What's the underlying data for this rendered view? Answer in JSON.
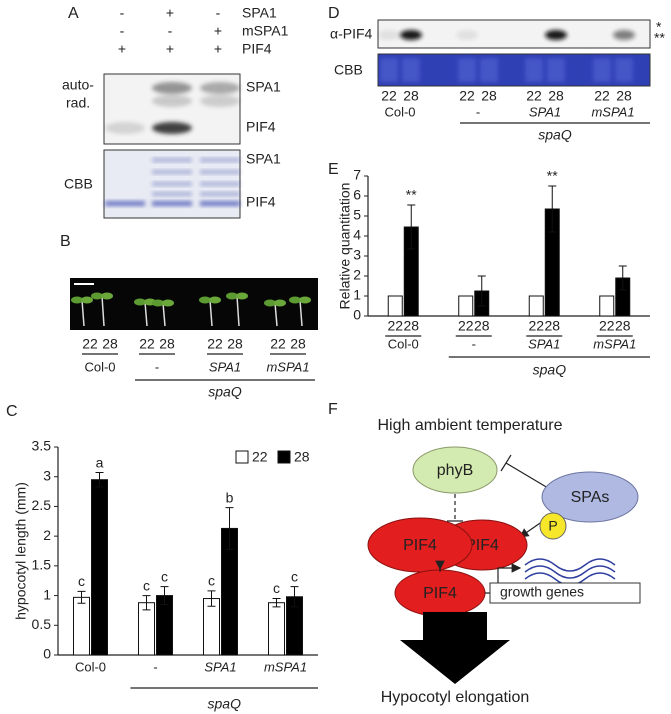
{
  "panel_A": {
    "label": "A",
    "rows": [
      {
        "name": "SPA1",
        "signs": [
          "-",
          "+",
          "-"
        ]
      },
      {
        "name": "mSPA1",
        "signs": [
          "-",
          "-",
          "+"
        ]
      },
      {
        "name": "PIF4",
        "signs": [
          "+",
          "+",
          "+"
        ]
      }
    ],
    "autorad_label": [
      "auto-",
      "rad."
    ],
    "autorad_bands": [
      "SPA1",
      "PIF4"
    ],
    "cbb_label": "CBB",
    "cbb_bands": [
      "SPA1",
      "PIF4"
    ]
  },
  "panel_B": {
    "label": "B",
    "lanes": [
      "22",
      "28"
    ],
    "genotypes": [
      "Col-0",
      "-",
      "SPA1",
      "mSPA1"
    ],
    "background": "spaQ"
  },
  "panel_D": {
    "label": "D",
    "blots": [
      "α-PIF4",
      "CBB"
    ],
    "band_marks": [
      "*",
      "**"
    ],
    "lanes": [
      "22",
      "28"
    ],
    "genotypes": [
      "Col-0",
      "-",
      "SPA1",
      "mSPA1"
    ],
    "background": "spaQ"
  },
  "panel_F": {
    "label": "F",
    "title": "High ambient temperature",
    "nodes": [
      "phyB",
      "SPAs",
      "PIF4",
      "PIF4",
      "P",
      "PIF4"
    ],
    "box": "growth genes",
    "output": "Hypocotyl elongation"
  },
  "chart_data": [
    {
      "type": "bar",
      "label": "C",
      "ylabel": "hypocotyl length (mm)",
      "categories": [
        "Col-0",
        "-",
        "SPA1",
        "mSPA1"
      ],
      "group_label": "spaQ",
      "series": [
        {
          "name": "22",
          "color": "#ffffff",
          "values": [
            0.97,
            0.88,
            0.95,
            0.88
          ],
          "errors": [
            0.1,
            0.12,
            0.13,
            0.07
          ],
          "significance": [
            "c",
            "c",
            "c",
            "c"
          ]
        },
        {
          "name": "28",
          "color": "#000000",
          "values": [
            2.95,
            1.0,
            2.13,
            0.98
          ],
          "errors": [
            0.12,
            0.15,
            0.35,
            0.17
          ],
          "significance": [
            "a",
            "c",
            "b",
            "c"
          ]
        }
      ],
      "ylim": [
        0,
        3.5
      ],
      "yticks": [
        0,
        0.5,
        1,
        1.5,
        2,
        2.5,
        3,
        3.5
      ],
      "legend": "upper right"
    },
    {
      "type": "bar",
      "label": "E",
      "ylabel": "Relative quantitation",
      "categories": [
        "Col-0",
        "-",
        "SPA1",
        "mSPA1"
      ],
      "group_label": "spaQ",
      "series": [
        {
          "name": "22",
          "color": "#ffffff",
          "values": [
            1,
            1,
            1,
            1
          ],
          "errors": [
            0,
            0,
            0,
            0
          ],
          "significance": [
            null,
            null,
            null,
            null
          ]
        },
        {
          "name": "28",
          "color": "#000000",
          "values": [
            4.45,
            1.25,
            5.35,
            1.9
          ],
          "errors": [
            1.1,
            0.75,
            1.15,
            0.6
          ],
          "significance": [
            "**",
            null,
            "**",
            null
          ]
        }
      ],
      "ylim": [
        0,
        7
      ],
      "yticks": [
        0,
        1,
        2,
        3,
        4,
        5,
        6,
        7
      ],
      "bar_labels": true
    }
  ]
}
